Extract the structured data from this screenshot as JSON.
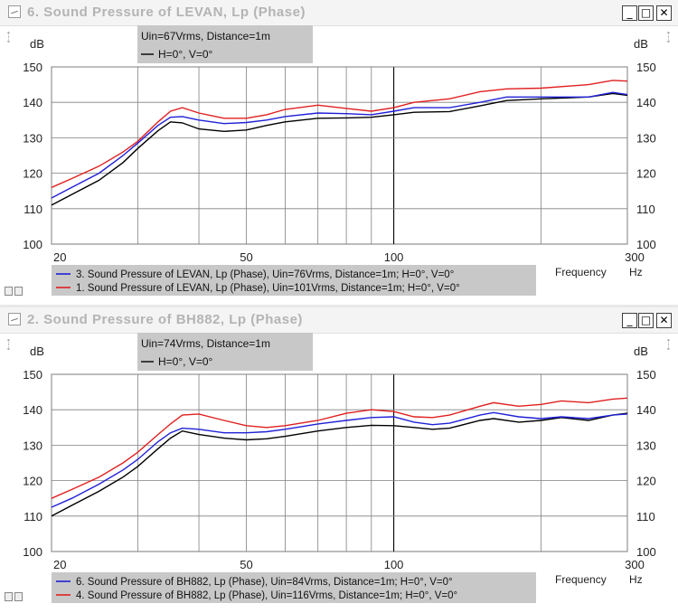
{
  "windows": [
    {
      "title": "6. Sound Pressure of LEVAN, Lp (Phase)",
      "controls": {
        "minimize": "_",
        "maximize": "□",
        "close": "✕"
      },
      "info_box": {
        "line1": "Uin=67Vrms, Distance=1m",
        "line2": "H=0°, V=0°"
      },
      "frequency_label": "Frequency",
      "chart_data": {
        "type": "line",
        "ylabel": "dB",
        "xunit": "Hz",
        "xscale": "log",
        "xlim": [
          20,
          300
        ],
        "ylim": [
          100,
          150
        ],
        "xticks": [
          20,
          50,
          100,
          300
        ],
        "yticks": [
          100,
          110,
          120,
          130,
          140,
          150
        ],
        "grid_x": [
          20,
          30,
          40,
          50,
          60,
          70,
          80,
          90,
          100,
          200,
          300
        ],
        "grid_y": [
          110,
          120,
          130,
          140,
          150
        ],
        "series": [
          {
            "name": "H=0°, V=0°",
            "color": "#000000",
            "points": [
              [
                20,
                111
              ],
              [
                22,
                114
              ],
              [
                25,
                118
              ],
              [
                28,
                123
              ],
              [
                30,
                127
              ],
              [
                33,
                132
              ],
              [
                35,
                134.5
              ],
              [
                37,
                134.2
              ],
              [
                40,
                132.5
              ],
              [
                45,
                131.8
              ],
              [
                50,
                132.2
              ],
              [
                55,
                133.5
              ],
              [
                60,
                134.5
              ],
              [
                70,
                135.5
              ],
              [
                80,
                135.6
              ],
              [
                90,
                135.8
              ],
              [
                100,
                136.5
              ],
              [
                110,
                137.2
              ],
              [
                130,
                137.4
              ],
              [
                150,
                139
              ],
              [
                170,
                140.5
              ],
              [
                200,
                141
              ],
              [
                250,
                141.5
              ],
              [
                280,
                142.5
              ],
              [
                300,
                142
              ]
            ]
          },
          {
            "name": "3. Sound Pressure of LEVAN, Lp (Phase), Uin=76Vrms, Distance=1m; H=0°, V=0°",
            "color": "#2020d8",
            "points": [
              [
                20,
                113
              ],
              [
                22,
                116
              ],
              [
                25,
                120
              ],
              [
                28,
                125
              ],
              [
                30,
                128.5
              ],
              [
                33,
                133.5
              ],
              [
                35,
                135.8
              ],
              [
                37,
                136
              ],
              [
                40,
                135
              ],
              [
                45,
                134
              ],
              [
                50,
                134.3
              ],
              [
                55,
                135
              ],
              [
                60,
                136
              ],
              [
                70,
                137
              ],
              [
                80,
                136.8
              ],
              [
                90,
                136.5
              ],
              [
                100,
                137.5
              ],
              [
                110,
                138.5
              ],
              [
                130,
                138.5
              ],
              [
                150,
                140
              ],
              [
                170,
                141.5
              ],
              [
                200,
                141.5
              ],
              [
                250,
                141.5
              ],
              [
                280,
                142.8
              ],
              [
                300,
                142.2
              ]
            ]
          },
          {
            "name": "1. Sound Pressure of LEVAN, Lp (Phase), Uin=101Vrms, Distance=1m; H=0°, V=0°",
            "color": "#e02020",
            "points": [
              [
                20,
                116
              ],
              [
                22,
                118.5
              ],
              [
                25,
                122
              ],
              [
                28,
                126
              ],
              [
                30,
                129
              ],
              [
                33,
                134.5
              ],
              [
                35,
                137.5
              ],
              [
                37,
                138.5
              ],
              [
                40,
                137
              ],
              [
                45,
                135.5
              ],
              [
                50,
                135.5
              ],
              [
                55,
                136.5
              ],
              [
                60,
                138
              ],
              [
                70,
                139.2
              ],
              [
                80,
                138.3
              ],
              [
                90,
                137.5
              ],
              [
                100,
                138.5
              ],
              [
                110,
                140
              ],
              [
                130,
                141
              ],
              [
                150,
                143
              ],
              [
                170,
                143.8
              ],
              [
                200,
                144
              ],
              [
                250,
                145
              ],
              [
                280,
                146.2
              ],
              [
                300,
                146
              ]
            ]
          }
        ]
      }
    },
    {
      "title": "2. Sound Pressure of BH882, Lp (Phase)",
      "controls": {
        "minimize": "_",
        "maximize": "□",
        "close": "✕"
      },
      "info_box": {
        "line1": "Uin=74Vrms, Distance=1m",
        "line2": "H=0°, V=0°"
      },
      "frequency_label": "Frequency",
      "chart_data": {
        "type": "line",
        "ylabel": "dB",
        "xunit": "Hz",
        "xscale": "log",
        "xlim": [
          20,
          300
        ],
        "ylim": [
          100,
          150
        ],
        "xticks": [
          20,
          50,
          100,
          300
        ],
        "yticks": [
          100,
          110,
          120,
          130,
          140,
          150
        ],
        "grid_x": [
          20,
          30,
          40,
          50,
          60,
          70,
          80,
          90,
          100,
          200,
          300
        ],
        "grid_y": [
          110,
          120,
          130,
          140,
          150
        ],
        "series": [
          {
            "name": "H=0°, V=0°",
            "color": "#000000",
            "points": [
              [
                20,
                110
              ],
              [
                22,
                113
              ],
              [
                25,
                117
              ],
              [
                28,
                121
              ],
              [
                30,
                124
              ],
              [
                33,
                129
              ],
              [
                35,
                132
              ],
              [
                37,
                134
              ],
              [
                40,
                133
              ],
              [
                45,
                132
              ],
              [
                50,
                131.5
              ],
              [
                55,
                131.8
              ],
              [
                60,
                132.5
              ],
              [
                70,
                134
              ],
              [
                80,
                135
              ],
              [
                90,
                135.6
              ],
              [
                100,
                135.5
              ],
              [
                110,
                135
              ],
              [
                120,
                134.5
              ],
              [
                130,
                134.8
              ],
              [
                150,
                137
              ],
              [
                160,
                137.5
              ],
              [
                180,
                136.5
              ],
              [
                200,
                137
              ],
              [
                220,
                137.8
              ],
              [
                250,
                137
              ],
              [
                280,
                138.5
              ],
              [
                300,
                139
              ]
            ]
          },
          {
            "name": "6. Sound Pressure of BH882, Lp (Phase), Uin=84Vrms, Distance=1m; H=0°, V=0°",
            "color": "#2020d8",
            "points": [
              [
                20,
                112.5
              ],
              [
                22,
                115
              ],
              [
                25,
                119
              ],
              [
                28,
                123
              ],
              [
                30,
                126
              ],
              [
                33,
                131
              ],
              [
                35,
                133.5
              ],
              [
                37,
                134.8
              ],
              [
                40,
                134.5
              ],
              [
                45,
                133.5
              ],
              [
                50,
                133.5
              ],
              [
                55,
                133.8
              ],
              [
                60,
                134.5
              ],
              [
                70,
                136
              ],
              [
                80,
                137
              ],
              [
                90,
                137.8
              ],
              [
                100,
                138
              ],
              [
                110,
                136.5
              ],
              [
                120,
                135.8
              ],
              [
                130,
                136.2
              ],
              [
                150,
                138.5
              ],
              [
                160,
                139.2
              ],
              [
                180,
                138
              ],
              [
                200,
                137.5
              ],
              [
                220,
                138
              ],
              [
                250,
                137.5
              ],
              [
                280,
                138.5
              ],
              [
                300,
                138.8
              ]
            ]
          },
          {
            "name": "4. Sound Pressure of BH882, Lp (Phase), Uin=116Vrms, Distance=1m; H=0°, V=0°",
            "color": "#e02020",
            "points": [
              [
                20,
                115
              ],
              [
                22,
                117.5
              ],
              [
                25,
                121
              ],
              [
                28,
                125
              ],
              [
                30,
                128
              ],
              [
                33,
                133
              ],
              [
                35,
                136
              ],
              [
                37,
                138.5
              ],
              [
                40,
                138.8
              ],
              [
                45,
                137
              ],
              [
                50,
                135.5
              ],
              [
                55,
                135
              ],
              [
                60,
                135.5
              ],
              [
                70,
                137
              ],
              [
                80,
                139
              ],
              [
                90,
                140
              ],
              [
                100,
                139.5
              ],
              [
                110,
                138
              ],
              [
                120,
                137.8
              ],
              [
                130,
                138.5
              ],
              [
                150,
                141
              ],
              [
                160,
                142
              ],
              [
                180,
                141
              ],
              [
                200,
                141.5
              ],
              [
                220,
                142.5
              ],
              [
                250,
                142
              ],
              [
                280,
                143
              ],
              [
                300,
                143.3
              ]
            ]
          }
        ]
      }
    }
  ]
}
